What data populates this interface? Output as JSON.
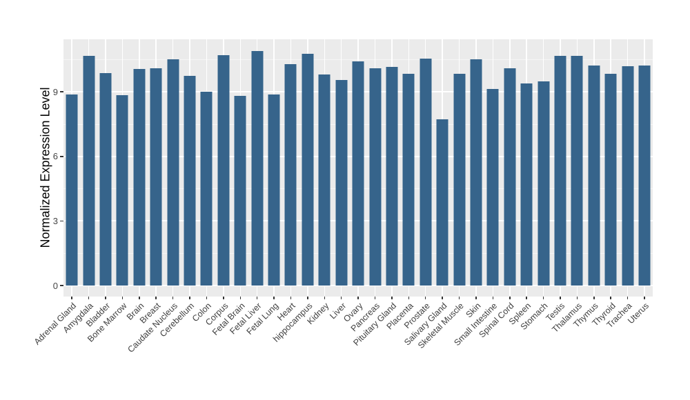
{
  "chart_data": {
    "type": "bar",
    "title": "",
    "xlabel": "",
    "ylabel": "Normalized Expression Level",
    "categories": [
      "Adrenal Gland",
      "Amygdala",
      "Bladder",
      "Bone Marrow",
      "Brain",
      "Breast",
      "Caudate Nucleus",
      "Cerebellum",
      "Colon",
      "Corpus",
      "Fetal Brain",
      "Fetal Liver",
      "Fetal Lung",
      "Heart",
      "hippocampus",
      "Kidney",
      "Liver",
      "Ovary",
      "Pancreas",
      "Pituitary Gland",
      "Placenta",
      "Prostate",
      "Salivary Gland",
      "Skeletal Muscle",
      "Skin",
      "Small Intestine",
      "Spinal Cord",
      "Spleen",
      "Stomach",
      "Testis",
      "Thalamus",
      "Thymus",
      "Thyroid",
      "Trachea",
      "Uterus"
    ],
    "values": [
      8.89,
      10.67,
      9.87,
      8.84,
      10.08,
      10.09,
      10.51,
      9.74,
      9.01,
      10.7,
      8.81,
      10.89,
      8.87,
      10.3,
      10.76,
      9.8,
      9.56,
      10.42,
      10.09,
      10.17,
      9.84,
      10.54,
      7.73,
      9.83,
      10.51,
      9.15,
      10.1,
      9.39,
      9.49,
      10.68,
      10.68,
      10.24,
      9.84,
      10.2,
      10.23
    ],
    "yticks_major": [
      0,
      3,
      6,
      9
    ],
    "yticks_minor": [
      1.5,
      4.5,
      7.5,
      10.5
    ],
    "ylim": [
      -0.55,
      11.42
    ],
    "bar_color": "#36648B",
    "panel_bg": "#EBEBEB",
    "grid_color": "#FFFFFF",
    "legend": "none",
    "x_label_rotation_deg": 45
  }
}
